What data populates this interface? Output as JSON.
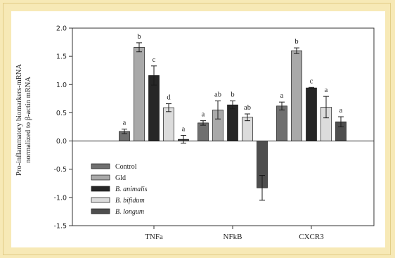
{
  "chart_data": {
    "type": "bar",
    "ylabel": [
      "Pro-inflammatory biomarkers-mRNA",
      "normalized to β-actin mRNA"
    ],
    "ylim": [
      -1.5,
      2.0
    ],
    "yticks": [
      "2.0",
      "1.5",
      "1.0",
      "0.5",
      "0.0",
      "-0.5",
      "-1.0",
      "-1.5"
    ],
    "categories": [
      "TNFa",
      "NFkB",
      "CXCR3"
    ],
    "legend": {
      "position": "lower-left"
    },
    "series": [
      {
        "name": "Control",
        "italic": false,
        "color": "#6f6f6f",
        "values": [
          0.17,
          0.32,
          0.62
        ],
        "errors": [
          0.04,
          0.04,
          0.07
        ],
        "letters": [
          "a",
          "a",
          "a"
        ]
      },
      {
        "name": "Gld",
        "italic": false,
        "color": "#a9a9a9",
        "values": [
          1.66,
          0.55,
          1.6
        ],
        "errors": [
          0.08,
          0.16,
          0.05
        ],
        "letters": [
          "b",
          "ab",
          "b"
        ]
      },
      {
        "name": "B. animalis",
        "italic": true,
        "color": "#262626",
        "values": [
          1.16,
          0.64,
          0.94
        ],
        "errors": [
          0.17,
          0.07,
          0.01
        ],
        "letters": [
          "c",
          "b",
          "c"
        ]
      },
      {
        "name": "B. bifidum",
        "italic": true,
        "color": "#dcdcdc",
        "values": [
          0.59,
          0.42,
          0.6
        ],
        "errors": [
          0.07,
          0.06,
          0.19
        ],
        "letters": [
          "d",
          "ab",
          "a"
        ]
      },
      {
        "name": "B. longum",
        "italic": true,
        "color": "#4e4e4e",
        "values": [
          0.03,
          -0.83,
          0.34
        ],
        "errors": [
          0.07,
          0.22,
          0.09
        ],
        "letters": [
          "a",
          "",
          "a"
        ]
      }
    ]
  }
}
